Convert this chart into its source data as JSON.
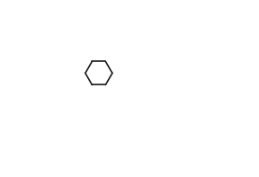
{
  "bg": "#ffffff",
  "lw": 1.2,
  "lc": "#1a1a1a",
  "figw": 2.88,
  "figh": 1.97,
  "dpi": 100
}
